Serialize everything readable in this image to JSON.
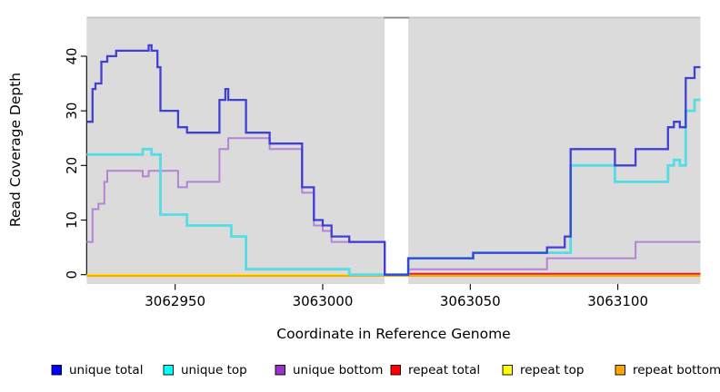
{
  "figure": {
    "xlabel": "Coordinate in Reference Genome",
    "ylabel": "Read Coverage Depth"
  },
  "chart_data": {
    "type": "line",
    "subtype": "step-coverage",
    "title": "",
    "xlabel": "Coordinate in Reference Genome",
    "ylabel": "Read Coverage Depth",
    "xlim": [
      3062920,
      3063128
    ],
    "ylim": [
      0,
      47
    ],
    "x_ticks": [
      3062950,
      3063000,
      3063050,
      3063100
    ],
    "y_ticks": [
      0,
      10,
      20,
      30,
      40
    ],
    "grid": false,
    "legend_position": "bottom",
    "panel_bg": "#DBDBDB",
    "gap_region": {
      "x_start": 3063021,
      "x_end": 3063029
    },
    "series": [
      {
        "name": "unique total",
        "legend_color": "#0000FF",
        "line_color": "#3333D6",
        "line_width": 2.3,
        "opacity": 0.92,
        "points": [
          [
            3062920,
            28
          ],
          [
            3062922,
            34
          ],
          [
            3062923,
            35
          ],
          [
            3062925,
            39
          ],
          [
            3062927,
            40
          ],
          [
            3062930,
            41
          ],
          [
            3062941,
            42
          ],
          [
            3062942,
            41
          ],
          [
            3062944,
            38
          ],
          [
            3062945,
            30
          ],
          [
            3062951,
            27
          ],
          [
            3062954,
            26
          ],
          [
            3062965,
            32
          ],
          [
            3062967,
            34
          ],
          [
            3062968,
            32
          ],
          [
            3062974,
            26
          ],
          [
            3062982,
            24
          ],
          [
            3062993,
            16
          ],
          [
            3062997,
            10
          ],
          [
            3063000,
            9
          ],
          [
            3063003,
            7
          ],
          [
            3063009,
            6
          ],
          [
            3063021,
            0
          ],
          [
            3063029,
            3
          ],
          [
            3063051,
            4
          ],
          [
            3063076,
            5
          ],
          [
            3063082,
            7
          ],
          [
            3063084,
            23
          ],
          [
            3063099,
            20
          ],
          [
            3063106,
            23
          ],
          [
            3063117,
            27
          ],
          [
            3063119,
            28
          ],
          [
            3063121,
            27
          ],
          [
            3063123,
            36
          ],
          [
            3063126,
            38
          ],
          [
            3063128,
            38
          ]
        ]
      },
      {
        "name": "unique top",
        "legend_color": "#00FFFF",
        "line_color": "#55DCE4",
        "line_width": 2.8,
        "opacity": 1,
        "points": [
          [
            3062920,
            22
          ],
          [
            3062939,
            23
          ],
          [
            3062942,
            22
          ],
          [
            3062945,
            11
          ],
          [
            3062954,
            9
          ],
          [
            3062969,
            7
          ],
          [
            3062974,
            1
          ],
          [
            3063009,
            0
          ],
          [
            3063029,
            3
          ],
          [
            3063051,
            4
          ],
          [
            3063084,
            20
          ],
          [
            3063099,
            17
          ],
          [
            3063117,
            20
          ],
          [
            3063119,
            21
          ],
          [
            3063121,
            20
          ],
          [
            3063123,
            30
          ],
          [
            3063126,
            32
          ],
          [
            3063128,
            32
          ]
        ]
      },
      {
        "name": "unique bottom",
        "legend_color": "#9932CC",
        "line_color": "#B583D6",
        "line_width": 2.0,
        "opacity": 1,
        "points": [
          [
            3062920,
            6
          ],
          [
            3062922,
            12
          ],
          [
            3062924,
            13
          ],
          [
            3062926,
            17
          ],
          [
            3062927,
            19
          ],
          [
            3062939,
            18
          ],
          [
            3062941,
            19
          ],
          [
            3062951,
            16
          ],
          [
            3062954,
            17
          ],
          [
            3062965,
            23
          ],
          [
            3062968,
            25
          ],
          [
            3062982,
            23
          ],
          [
            3062993,
            15
          ],
          [
            3062997,
            9
          ],
          [
            3063000,
            8
          ],
          [
            3063003,
            6
          ],
          [
            3063021,
            0
          ],
          [
            3063029,
            1
          ],
          [
            3063076,
            3
          ],
          [
            3063106,
            6
          ],
          [
            3063128,
            6
          ]
        ]
      },
      {
        "name": "repeat total",
        "legend_color": "#FF0000",
        "line_color": "#E01438",
        "line_width": 2.0,
        "opacity": 1,
        "points": [
          [
            3063029,
            0
          ],
          [
            3063128,
            0
          ]
        ]
      },
      {
        "name": "repeat top",
        "legend_color": "#FFFF00",
        "line_color": "#FFFF00",
        "line_width": 1.6,
        "opacity": 1,
        "points": [
          [
            3062920,
            0
          ],
          [
            3063128,
            0
          ]
        ]
      },
      {
        "name": "repeat bottom",
        "legend_color": "#FFA500",
        "line_color": "#FFA500",
        "line_width": 2.3,
        "opacity": 1,
        "points": [
          [
            3062920,
            0
          ],
          [
            3063128,
            0
          ]
        ]
      }
    ]
  }
}
